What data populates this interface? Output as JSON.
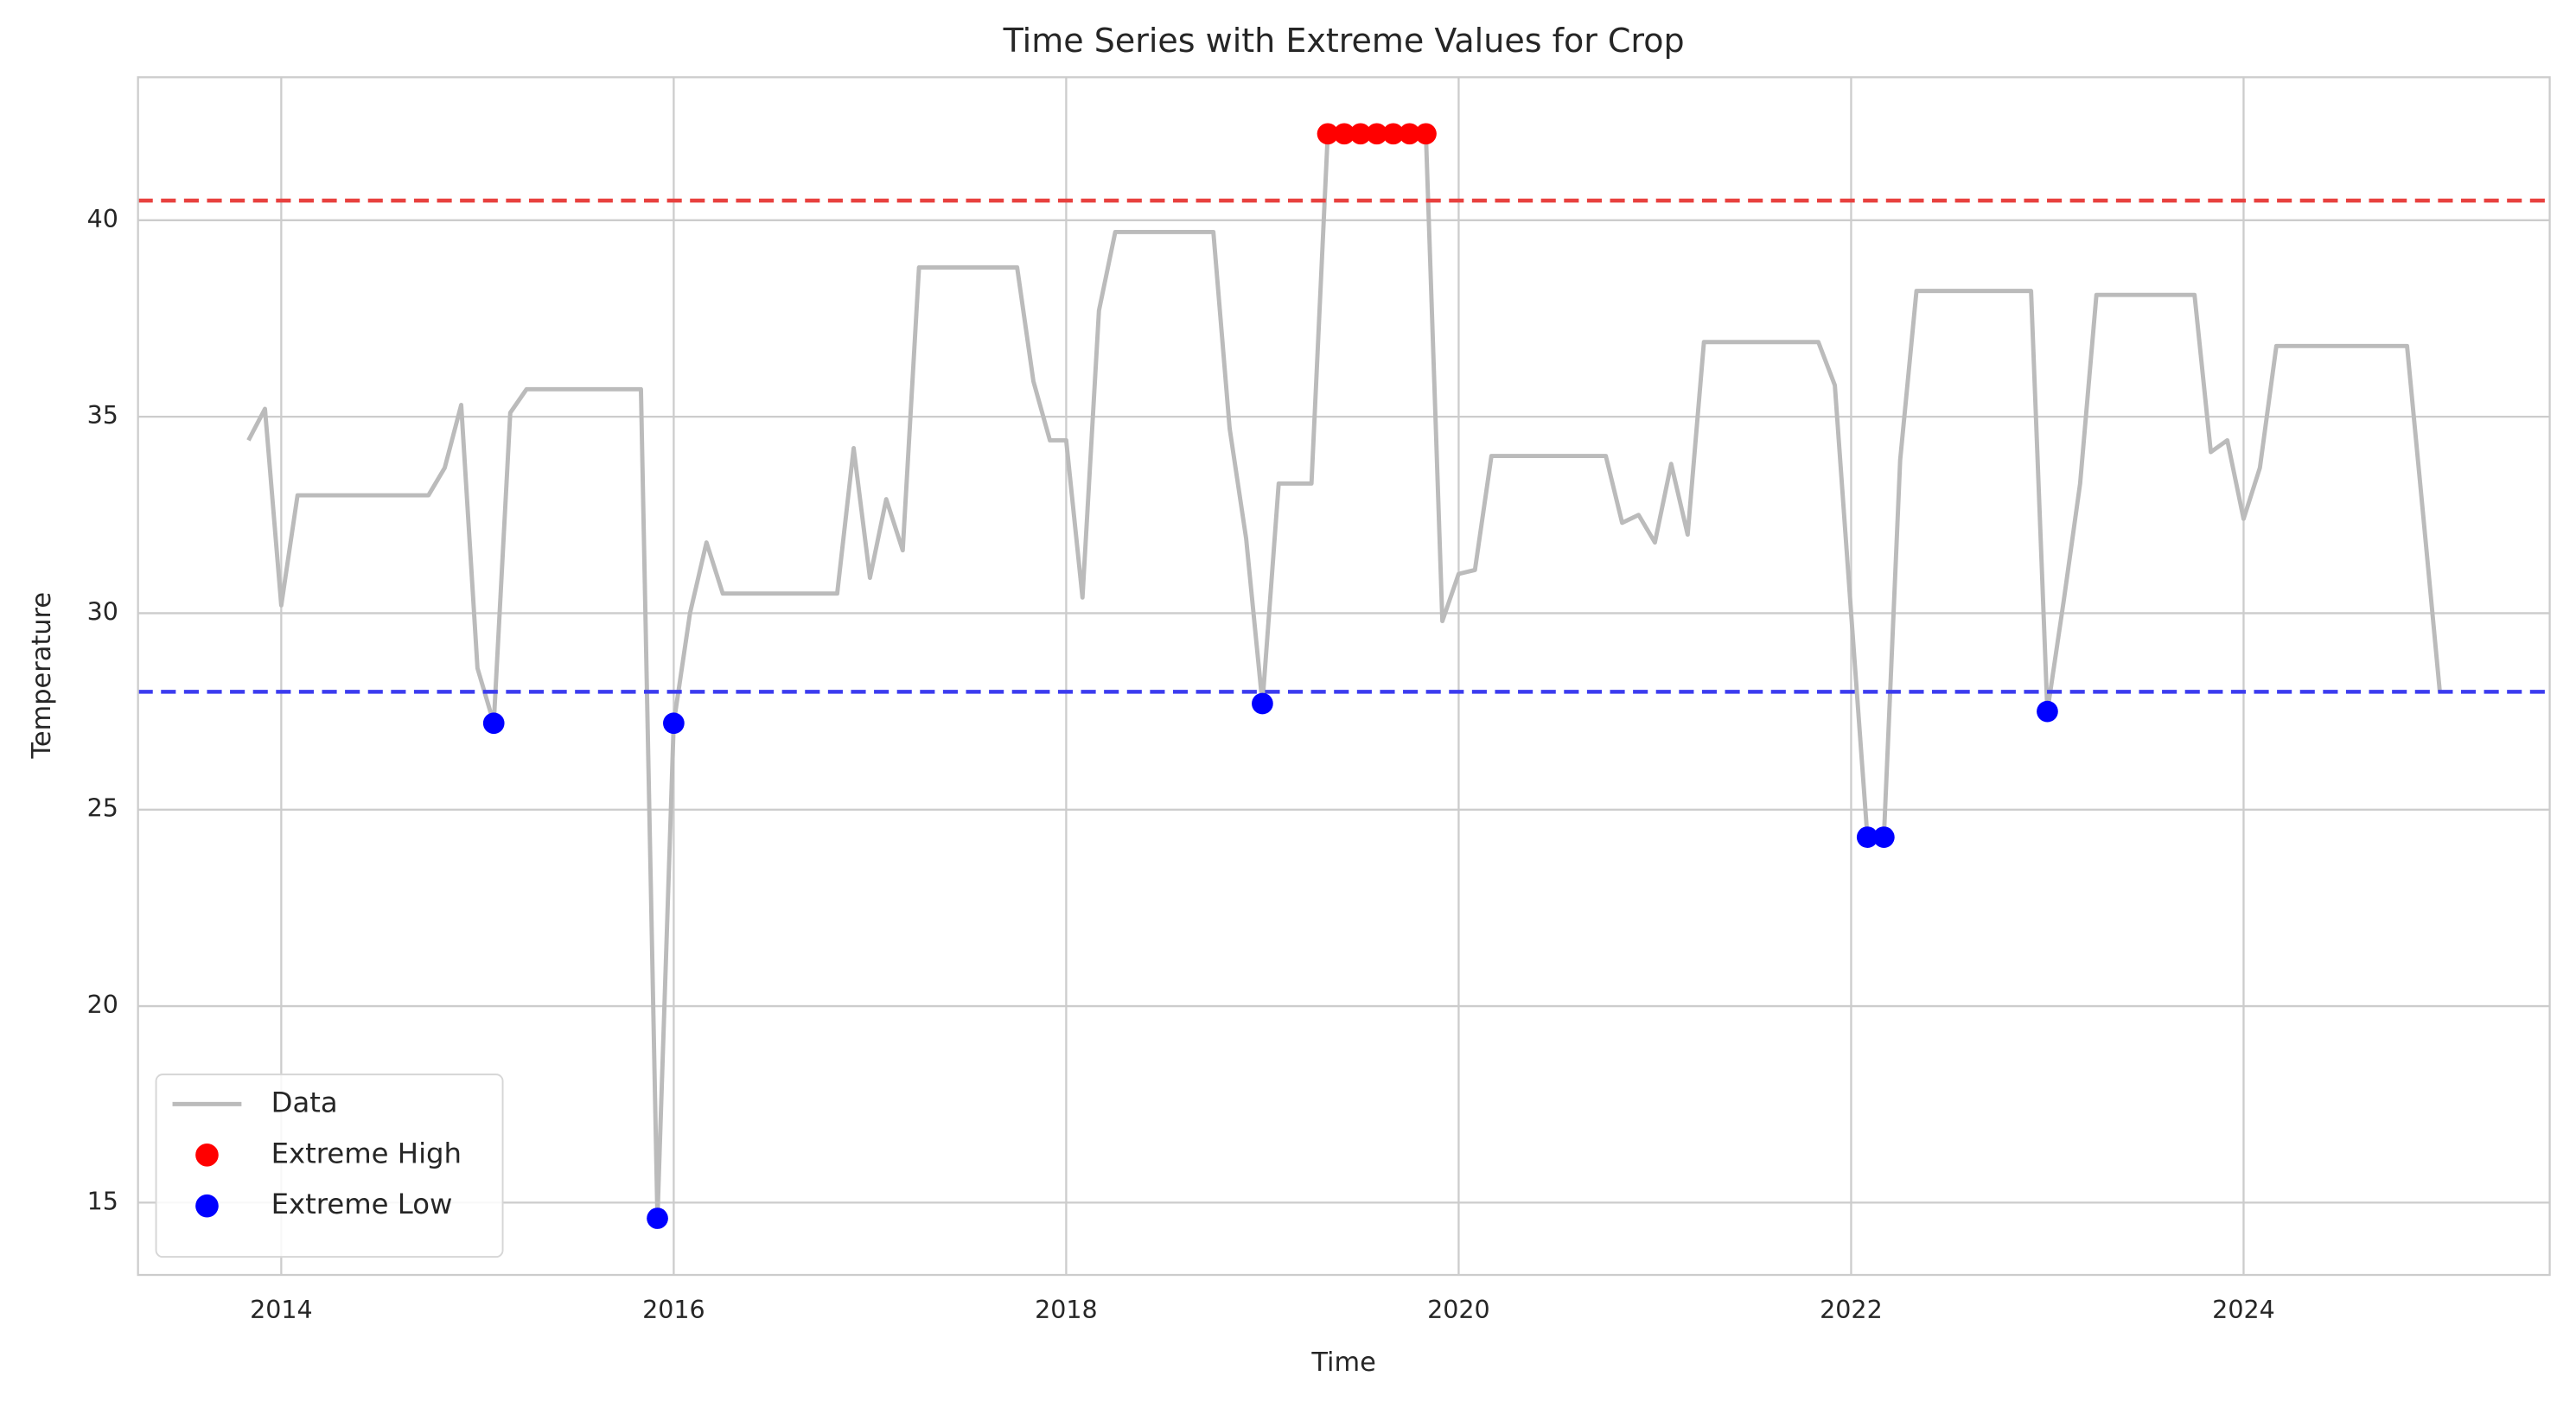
{
  "chart_data": {
    "type": "line",
    "title": "Time Series with Extreme Values for Crop",
    "xlabel": "Time",
    "ylabel": "Temperature",
    "xlim": [
      2013.27,
      2025.56
    ],
    "ylim": [
      13.16,
      43.64
    ],
    "xticks": [
      2014,
      2016,
      2018,
      2020,
      2022,
      2024
    ],
    "yticks": [
      15,
      20,
      25,
      30,
      35,
      40
    ],
    "grid": true,
    "legend": "lower left",
    "hlines": [
      {
        "value": 40.5,
        "color": "#e8413f"
      },
      {
        "value": 28.0,
        "color": "#3b3bef"
      }
    ],
    "series": [
      {
        "name": "Data",
        "type": "line",
        "color": "#bbbbbb",
        "x": [
          2013.833,
          2013.917,
          2014.0,
          2014.083,
          2014.167,
          2014.25,
          2014.333,
          2014.417,
          2014.5,
          2014.583,
          2014.667,
          2014.75,
          2014.833,
          2014.917,
          2015.0,
          2015.083,
          2015.167,
          2015.25,
          2015.333,
          2015.417,
          2015.5,
          2015.583,
          2015.667,
          2015.75,
          2015.833,
          2015.917,
          2016.0,
          2016.083,
          2016.167,
          2016.25,
          2016.333,
          2016.417,
          2016.5,
          2016.583,
          2016.667,
          2016.75,
          2016.833,
          2016.917,
          2017.0,
          2017.083,
          2017.167,
          2017.25,
          2017.333,
          2017.417,
          2017.5,
          2017.583,
          2017.667,
          2017.75,
          2017.833,
          2017.917,
          2018.0,
          2018.083,
          2018.167,
          2018.25,
          2018.333,
          2018.417,
          2018.5,
          2018.583,
          2018.667,
          2018.75,
          2018.833,
          2018.917,
          2019.0,
          2019.083,
          2019.167,
          2019.25,
          2019.333,
          2019.417,
          2019.5,
          2019.583,
          2019.667,
          2019.75,
          2019.833,
          2019.917,
          2020.0,
          2020.083,
          2020.167,
          2020.25,
          2020.333,
          2020.417,
          2020.5,
          2020.583,
          2020.667,
          2020.75,
          2020.833,
          2020.917,
          2021.0,
          2021.083,
          2021.167,
          2021.25,
          2021.333,
          2021.417,
          2021.5,
          2021.583,
          2021.667,
          2021.75,
          2021.833,
          2021.917,
          2022.0,
          2022.083,
          2022.167,
          2022.25,
          2022.333,
          2022.417,
          2022.5,
          2022.583,
          2022.667,
          2022.75,
          2022.833,
          2022.917,
          2023.0,
          2023.083,
          2023.167,
          2023.25,
          2023.333,
          2023.417,
          2023.5,
          2023.583,
          2023.667,
          2023.75,
          2023.833,
          2023.917,
          2024.0,
          2024.083,
          2024.167,
          2024.25,
          2024.333,
          2024.417,
          2024.5,
          2024.583,
          2024.667,
          2024.75,
          2024.833,
          2024.917,
          2025.0
        ],
        "values": [
          34.4,
          35.2,
          30.2,
          33.0,
          33.0,
          33.0,
          33.0,
          33.0,
          33.0,
          33.0,
          33.0,
          33.0,
          33.7,
          35.3,
          28.6,
          27.2,
          35.1,
          35.7,
          35.7,
          35.7,
          35.7,
          35.7,
          35.7,
          35.7,
          35.7,
          14.6,
          27.2,
          30.0,
          31.8,
          30.5,
          30.5,
          30.5,
          30.5,
          30.5,
          30.5,
          30.5,
          30.5,
          34.2,
          30.9,
          32.9,
          31.6,
          38.8,
          38.8,
          38.8,
          38.8,
          38.8,
          38.8,
          38.8,
          35.9,
          34.4,
          34.4,
          30.4,
          37.7,
          39.7,
          39.7,
          39.7,
          39.7,
          39.7,
          39.7,
          39.7,
          34.7,
          31.9,
          27.7,
          33.3,
          33.3,
          33.3,
          42.2,
          42.2,
          42.2,
          42.2,
          42.2,
          42.2,
          42.2,
          29.8,
          31.0,
          31.1,
          34.0,
          34.0,
          34.0,
          34.0,
          34.0,
          34.0,
          34.0,
          34.0,
          32.3,
          32.5,
          31.8,
          33.8,
          32.0,
          36.9,
          36.9,
          36.9,
          36.9,
          36.9,
          36.9,
          36.9,
          36.9,
          35.8,
          30.0,
          24.3,
          24.3,
          33.9,
          38.2,
          38.2,
          38.2,
          38.2,
          38.2,
          38.2,
          38.2,
          38.2,
          27.5,
          30.3,
          33.3,
          38.1,
          38.1,
          38.1,
          38.1,
          38.1,
          38.1,
          38.1,
          34.1,
          34.4,
          32.4,
          33.7,
          36.8,
          36.8,
          36.8,
          36.8,
          36.8,
          36.8,
          36.8,
          36.8,
          36.8,
          32.4,
          28.0
        ]
      },
      {
        "name": "Extreme High",
        "type": "scatter",
        "color": "#ff0000",
        "x": [
          2019.333,
          2019.417,
          2019.5,
          2019.583,
          2019.667,
          2019.75,
          2019.833
        ],
        "values": [
          42.2,
          42.2,
          42.2,
          42.2,
          42.2,
          42.2,
          42.2
        ]
      },
      {
        "name": "Extreme Low",
        "type": "scatter",
        "color": "#0000ff",
        "x": [
          2015.083,
          2015.917,
          2016.0,
          2019.0,
          2022.083,
          2022.167,
          2023.0
        ],
        "values": [
          27.2,
          14.6,
          27.2,
          27.7,
          24.3,
          24.3,
          27.5
        ]
      }
    ]
  }
}
